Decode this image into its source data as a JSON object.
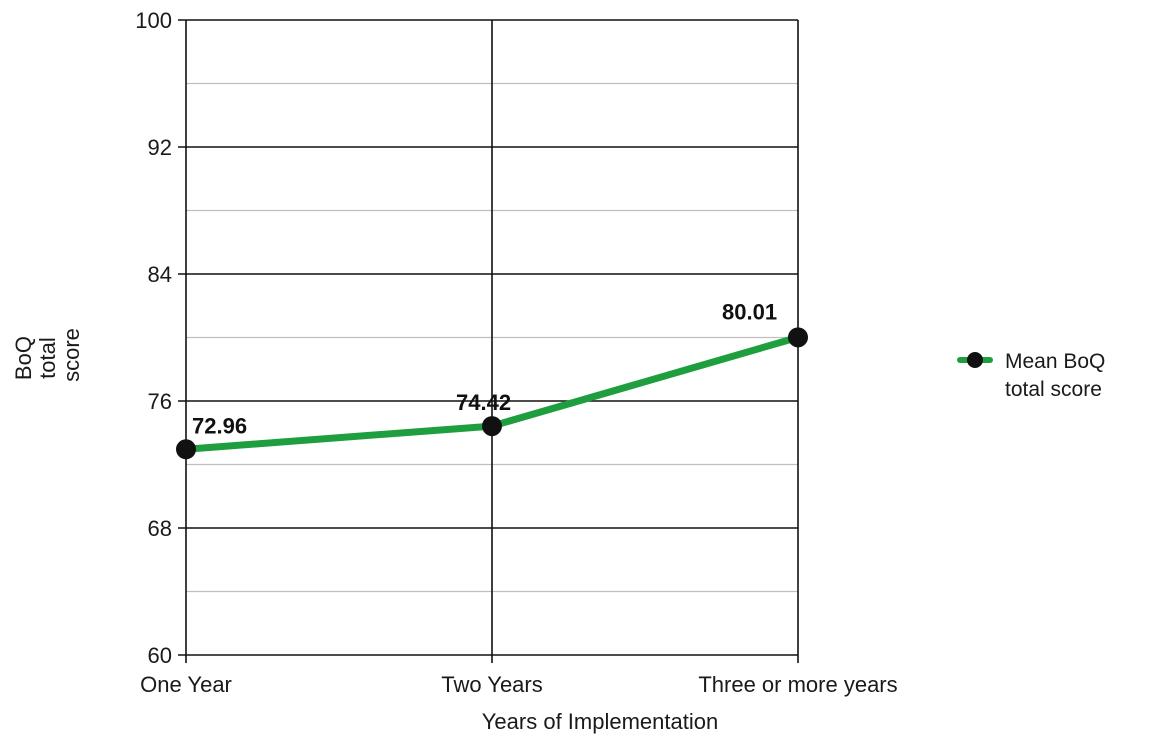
{
  "chart_data": {
    "type": "line",
    "categories": [
      "One Year",
      "Two Years",
      "Three or more years"
    ],
    "series": [
      {
        "name": "Mean BoQ total score",
        "values": [
          72.96,
          74.42,
          80.01
        ]
      }
    ],
    "data_labels": [
      "72.96",
      "74.42",
      "80.01"
    ],
    "xlabel": "Years of Implementation",
    "ylabel_lines": [
      "BoQ",
      "total",
      "score"
    ],
    "legend_lines": [
      "Mean BoQ",
      "total score"
    ],
    "legend_position": "right",
    "ylim": [
      60,
      100
    ],
    "yticks": [
      60,
      68,
      76,
      84,
      92,
      100
    ],
    "grid": true,
    "colors": {
      "line": "#1e9e3e",
      "marker": "#111111",
      "grid_major": "#111111",
      "grid_minor": "#bfbfbf"
    }
  }
}
